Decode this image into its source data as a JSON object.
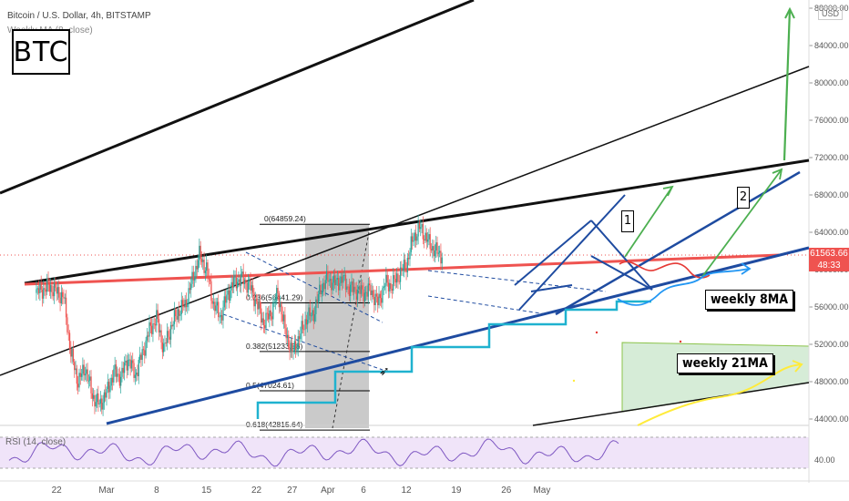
{
  "header": {
    "title": "Bitcoin / U.S. Dollar, 4h, BITSTAMP",
    "indicator": "Weekly MA (8, close)",
    "badge": "BTC",
    "currency": "USD"
  },
  "rsi": {
    "label": "RSI (14, close)"
  },
  "annotations": {
    "weekly_8ma": "weekly 8MA",
    "weekly_21ma": "weekly 21MA",
    "scenario_1": "1",
    "scenario_2": "2"
  },
  "price_tag": {
    "price": "61563.66",
    "timer": "48:33"
  },
  "fib_levels": [
    {
      "label": "0(64859.24)",
      "value": 64859.24
    },
    {
      "label": "0.236(56441.29)",
      "value": 56441.29
    },
    {
      "label": "0.382(51233.58)",
      "value": 51233.58
    },
    {
      "label": "0.5(47024.61)",
      "value": 47024.61
    },
    {
      "label": "0.618(42815.64)",
      "value": 42815.64
    }
  ],
  "chart_data": {
    "type": "candlestick",
    "title": "Bitcoin / U.S. Dollar, 4h, BITSTAMP",
    "y_ticks": [
      44000,
      48000,
      52000,
      56000,
      60000,
      64000,
      68000,
      72000,
      76000,
      80000,
      84000,
      88000
    ],
    "y_tick_labels": [
      "44000.00",
      "48000.00",
      "52000.00",
      "56000.00",
      "60000.00",
      "64000.00",
      "68000.00",
      "72000.00",
      "76000.00",
      "80000.00",
      "84000.00",
      "88000.00"
    ],
    "x_tick_labels": [
      "22",
      "Mar",
      "8",
      "15",
      "22",
      "27",
      "Apr",
      "6",
      "12",
      "19",
      "26",
      "May"
    ],
    "x_tick_days": [
      -7,
      0,
      7,
      14,
      21,
      26,
      31,
      36,
      42,
      49,
      56,
      61
    ],
    "ylim": [
      43000,
      89000
    ],
    "rsi_ticks": [
      40
    ],
    "rsi_tick_labels": [
      "40.00"
    ],
    "close_path": [
      [
        -10,
        57500
      ],
      [
        -8,
        58200
      ],
      [
        -6,
        57000
      ],
      [
        -5,
        51000
      ],
      [
        -4,
        48000
      ],
      [
        -3,
        49500
      ],
      [
        -2,
        46500
      ],
      [
        -1,
        45500
      ],
      [
        0,
        46800
      ],
      [
        1,
        49000
      ],
      [
        2,
        48500
      ],
      [
        3,
        50500
      ],
      [
        4,
        48700
      ],
      [
        5,
        51000
      ],
      [
        6,
        53500
      ],
      [
        7,
        54800
      ],
      [
        8,
        51500
      ],
      [
        9,
        53800
      ],
      [
        10,
        55500
      ],
      [
        11,
        56200
      ],
      [
        12,
        58800
      ],
      [
        13,
        61500
      ],
      [
        14,
        60000
      ],
      [
        15,
        56200
      ],
      [
        16,
        55000
      ],
      [
        17,
        57500
      ],
      [
        18,
        58800
      ],
      [
        19,
        59000
      ],
      [
        20,
        58300
      ],
      [
        21,
        56500
      ],
      [
        22,
        54300
      ],
      [
        23,
        55300
      ],
      [
        24,
        57500
      ],
      [
        25,
        53500
      ],
      [
        26,
        51000
      ],
      [
        27,
        52800
      ],
      [
        28,
        54800
      ],
      [
        29,
        55300
      ],
      [
        30,
        58000
      ],
      [
        31,
        59000
      ],
      [
        32,
        58500
      ],
      [
        33,
        59000
      ],
      [
        34,
        58000
      ],
      [
        35,
        57800
      ],
      [
        36,
        57500
      ],
      [
        37,
        57800
      ],
      [
        38,
        56400
      ],
      [
        39,
        58500
      ],
      [
        40,
        58300
      ],
      [
        41,
        59500
      ],
      [
        42,
        60500
      ],
      [
        43,
        63500
      ],
      [
        44,
        64500
      ],
      [
        45,
        63000
      ],
      [
        46,
        62000
      ],
      [
        47,
        61564
      ]
    ]
  },
  "colors": {
    "up": "#26a69a",
    "down": "#ef5350",
    "resistance": "#ef5350",
    "channel": "#1e4ba0",
    "ma8": "#1fb2cf",
    "ma21_zone": "#8bc34a",
    "forecast_green": "#4caf50",
    "forecast_yellow": "#ffeb3b",
    "forecast_blue": "#2196f3",
    "rsi_line": "#7e57c2",
    "rsi_band": "#e9d8f7"
  }
}
